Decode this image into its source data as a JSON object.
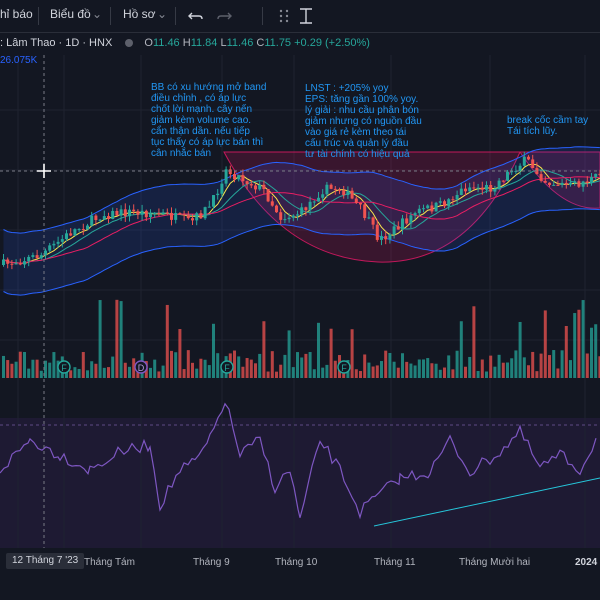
{
  "toolbar": {
    "indicators_label": "hỉ báo",
    "chart_type_label": "Biểu đồ",
    "profile_label": "Hồ sơ",
    "undo_icon": "undo-icon",
    "redo_icon": "redo-icon",
    "drag_icon": "drag-handle-icon",
    "measure_icon": "measure-icon"
  },
  "symbol": {
    "name": ": Lâm Thao · 1D · HNX",
    "open_label": "O",
    "open": "11.46",
    "high_label": "H",
    "high": "11.84",
    "low_label": "L",
    "low": "11.46",
    "close_label": "C",
    "close": "11.75",
    "change": "+0.29 (+2.50%)",
    "volume": "26.075K"
  },
  "annotations": {
    "note1": "BB có xu hướng mở band\nđiều chỉnh , có áp lực\nchốt lời mạnh. cây nến\ngiảm kèm volume cao.\ncẩn thận dần. nếu tiếp\ntục thấy có áp lực bán thì\ncân nhắc bán",
    "note2": "LNST : +205% yoy\nEPS: tăng gần 100% yoy.\nlý giải : nhu cầu phân bón\ngiảm nhưng có nguồn đầu\nvào giá rẻ kèm theo tái\ncấu trúc và quản lý đầu\ntư tài chính có hiệu quả",
    "note3": "break cốc cầm tay\nTái tích lũy."
  },
  "markers": [
    "F",
    "D",
    "F",
    "F"
  ],
  "xaxis": {
    "cursor_label": "12 Tháng 7 '23",
    "labels": [
      "Tháng Tám",
      "Tháng 9",
      "Tháng 10",
      "Tháng 11",
      "Tháng Mười hai",
      "2024"
    ]
  },
  "colors": {
    "up": "#26a69a",
    "down": "#ef5350",
    "bb": "#2962ff",
    "rsi": "#7e57c2",
    "cup": "#c2185b",
    "note": "#2196f3"
  }
}
